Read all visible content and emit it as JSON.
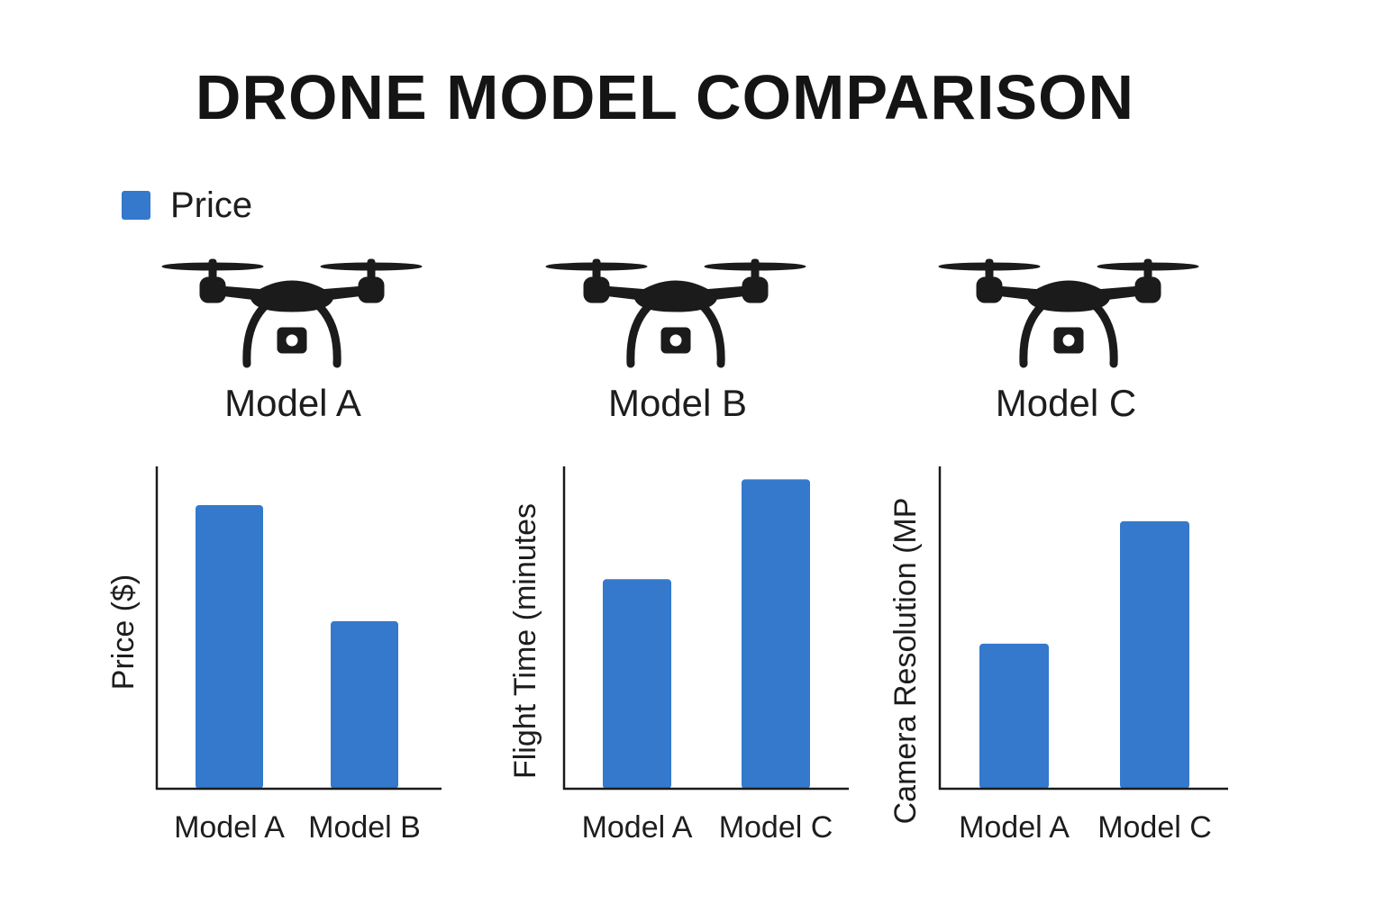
{
  "title": "DRONE MODEL COMPARISON",
  "legend": {
    "label": "Price",
    "color": "#3479cc"
  },
  "colors": {
    "bar": "#3479cc",
    "axis": "#1a1a1a",
    "drone": "#1b1b1b"
  },
  "models": [
    {
      "name": "Model A",
      "icon": "drone-icon"
    },
    {
      "name": "Model B",
      "icon": "drone-icon"
    },
    {
      "name": "Model C",
      "icon": "drone-icon"
    }
  ],
  "chart_data": [
    {
      "type": "bar",
      "title": "",
      "xlabel": "",
      "ylabel": "Price ($)",
      "categories": [
        "Model A",
        "Model B"
      ],
      "values": [
        88,
        52
      ],
      "ylim": [
        0,
        100
      ],
      "grid": false
    },
    {
      "type": "bar",
      "title": "",
      "xlabel": "",
      "ylabel": "Flight Time (minutes",
      "categories": [
        "Model A",
        "Model C"
      ],
      "values": [
        65,
        96
      ],
      "ylim": [
        0,
        100
      ],
      "grid": false
    },
    {
      "type": "bar",
      "title": "",
      "xlabel": "",
      "ylabel": "Camera Resolution (MP",
      "categories": [
        "Model A",
        "Model C"
      ],
      "values": [
        45,
        83
      ],
      "ylim": [
        0,
        100
      ],
      "grid": false
    }
  ]
}
